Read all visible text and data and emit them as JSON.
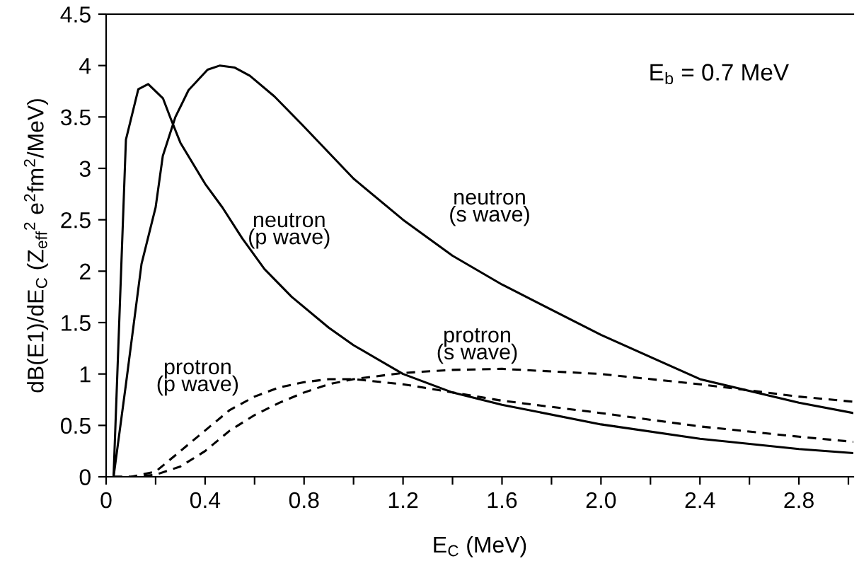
{
  "chart_data": {
    "type": "line",
    "xlabel": "E$_{C}$ (MeV)",
    "ylabel": "dB(E1)/dE$_{C}$ (Z$_{eff}$$^{2}$ e$^{2}$fm$^{2}$/MeV)",
    "annotations": [
      "E$_{b}$ = 0.7 MeV"
    ],
    "xlim": [
      0,
      3.02
    ],
    "ylim": [
      0,
      4.5
    ],
    "xticks": [
      0,
      {
        "value": 0.2,
        "label": null
      },
      0.4,
      {
        "value": 0.6,
        "label": null
      },
      0.8,
      {
        "value": 1.0,
        "label": null
      },
      1.2,
      {
        "value": 1.4,
        "label": null
      },
      1.6,
      {
        "value": 1.8,
        "label": null
      },
      {
        "value": 2.0,
        "label": "2.0"
      },
      {
        "value": 2.2,
        "label": null
      },
      2.4,
      {
        "value": 2.6,
        "label": null
      },
      2.8,
      {
        "value": 3.0,
        "label": null
      }
    ],
    "yticks": [
      0,
      0.5,
      1,
      1.5,
      2,
      2.5,
      3,
      3.5,
      4,
      4.5
    ],
    "grid": false,
    "legend": false,
    "marker": "none",
    "series": [
      {
        "name": "neutron\n(p wave)",
        "color": "#000000",
        "line_style": "solid",
        "x": [
          0.03,
          0.08,
          0.13,
          0.17,
          0.23,
          0.26,
          0.3,
          0.4,
          0.47,
          0.55,
          0.64,
          0.75,
          0.9,
          1.0,
          1.2,
          1.4,
          1.6,
          2.0,
          2.4,
          2.8,
          3.02
        ],
        "values": [
          0,
          3.28,
          3.77,
          3.82,
          3.68,
          3.49,
          3.25,
          2.85,
          2.62,
          2.32,
          2.02,
          1.75,
          1.45,
          1.28,
          1.0,
          0.82,
          0.7,
          0.51,
          0.37,
          0.27,
          0.23
        ]
      },
      {
        "name": "neutron\n(s wave)",
        "color": "#000000",
        "line_style": "solid",
        "x": [
          0.03,
          0.08,
          0.143,
          0.2,
          0.229,
          0.28,
          0.333,
          0.41,
          0.46,
          0.52,
          0.581,
          0.68,
          0.79,
          1.0,
          1.2,
          1.4,
          1.6,
          2.0,
          2.4,
          2.8,
          3.02
        ],
        "values": [
          0,
          0.9,
          2.07,
          2.62,
          3.12,
          3.5,
          3.76,
          3.96,
          4.0,
          3.98,
          3.9,
          3.7,
          3.43,
          2.9,
          2.5,
          2.15,
          1.87,
          1.38,
          0.95,
          0.72,
          0.62
        ]
      },
      {
        "name": "protron\n(p wave)",
        "color": "#000000",
        "line_style": "dashed",
        "x": [
          0.03,
          0.1,
          0.2,
          0.3,
          0.4,
          0.5,
          0.6,
          0.7,
          0.8,
          0.9,
          1.0,
          1.2,
          1.4,
          1.6,
          2.0,
          2.4,
          2.8,
          3.02
        ],
        "values": [
          0,
          0,
          0.05,
          0.25,
          0.45,
          0.65,
          0.78,
          0.87,
          0.92,
          0.95,
          0.95,
          0.9,
          0.82,
          0.74,
          0.62,
          0.49,
          0.39,
          0.34
        ]
      },
      {
        "name": "protron\n(s wave)",
        "color": "#000000",
        "line_style": "dashed",
        "x": [
          0.03,
          0.1,
          0.2,
          0.3,
          0.4,
          0.5,
          0.6,
          0.7,
          0.8,
          0.9,
          1.0,
          1.2,
          1.4,
          1.6,
          2.0,
          2.4,
          2.8,
          3.02
        ],
        "values": [
          0,
          0,
          0.02,
          0.1,
          0.25,
          0.45,
          0.6,
          0.72,
          0.82,
          0.9,
          0.95,
          1.01,
          1.04,
          1.05,
          1.0,
          0.9,
          0.78,
          0.73
        ]
      }
    ]
  }
}
